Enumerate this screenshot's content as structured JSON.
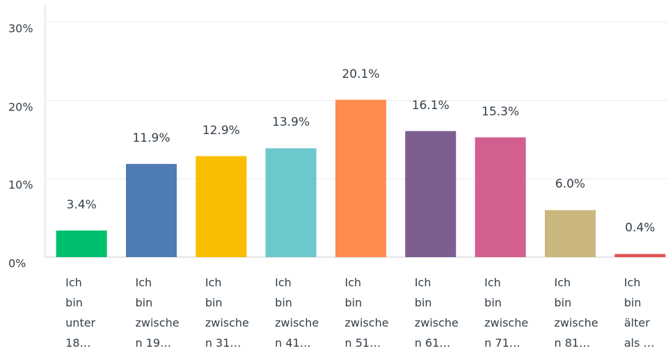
{
  "chart_data": {
    "type": "bar",
    "categories": [
      "Ich\nbin\nunter\n18…",
      "Ich\nbin\nzwische\nn 19…",
      "Ich\nbin\nzwische\nn 31…",
      "Ich\nbin\nzwische\nn 41…",
      "Ich\nbin\nzwische\nn 51…",
      "Ich\nbin\nzwische\nn 61…",
      "Ich\nbin\nzwische\nn 71…",
      "Ich\nbin\nzwische\nn 81…",
      "Ich\nbin\nälter\nals …"
    ],
    "values": [
      3.4,
      11.9,
      12.9,
      13.9,
      20.1,
      16.1,
      15.3,
      6.0,
      0.4
    ],
    "value_labels": [
      "3.4%",
      "11.9%",
      "12.9%",
      "13.9%",
      "20.1%",
      "16.1%",
      "15.3%",
      "6.0%",
      "0.4%"
    ],
    "colors": [
      "#00bf6f",
      "#507cb6",
      "#f9be00",
      "#6bc8cd",
      "#ff8b4f",
      "#7d5e90",
      "#d25f90",
      "#c9b77d",
      "#e05252"
    ],
    "ylim": [
      0,
      30
    ],
    "yticks": [
      {
        "value": 0,
        "label": "0%"
      },
      {
        "value": 10,
        "label": "10%"
      },
      {
        "value": 20,
        "label": "20%"
      },
      {
        "value": 30,
        "label": "30%"
      }
    ],
    "grid": true
  }
}
